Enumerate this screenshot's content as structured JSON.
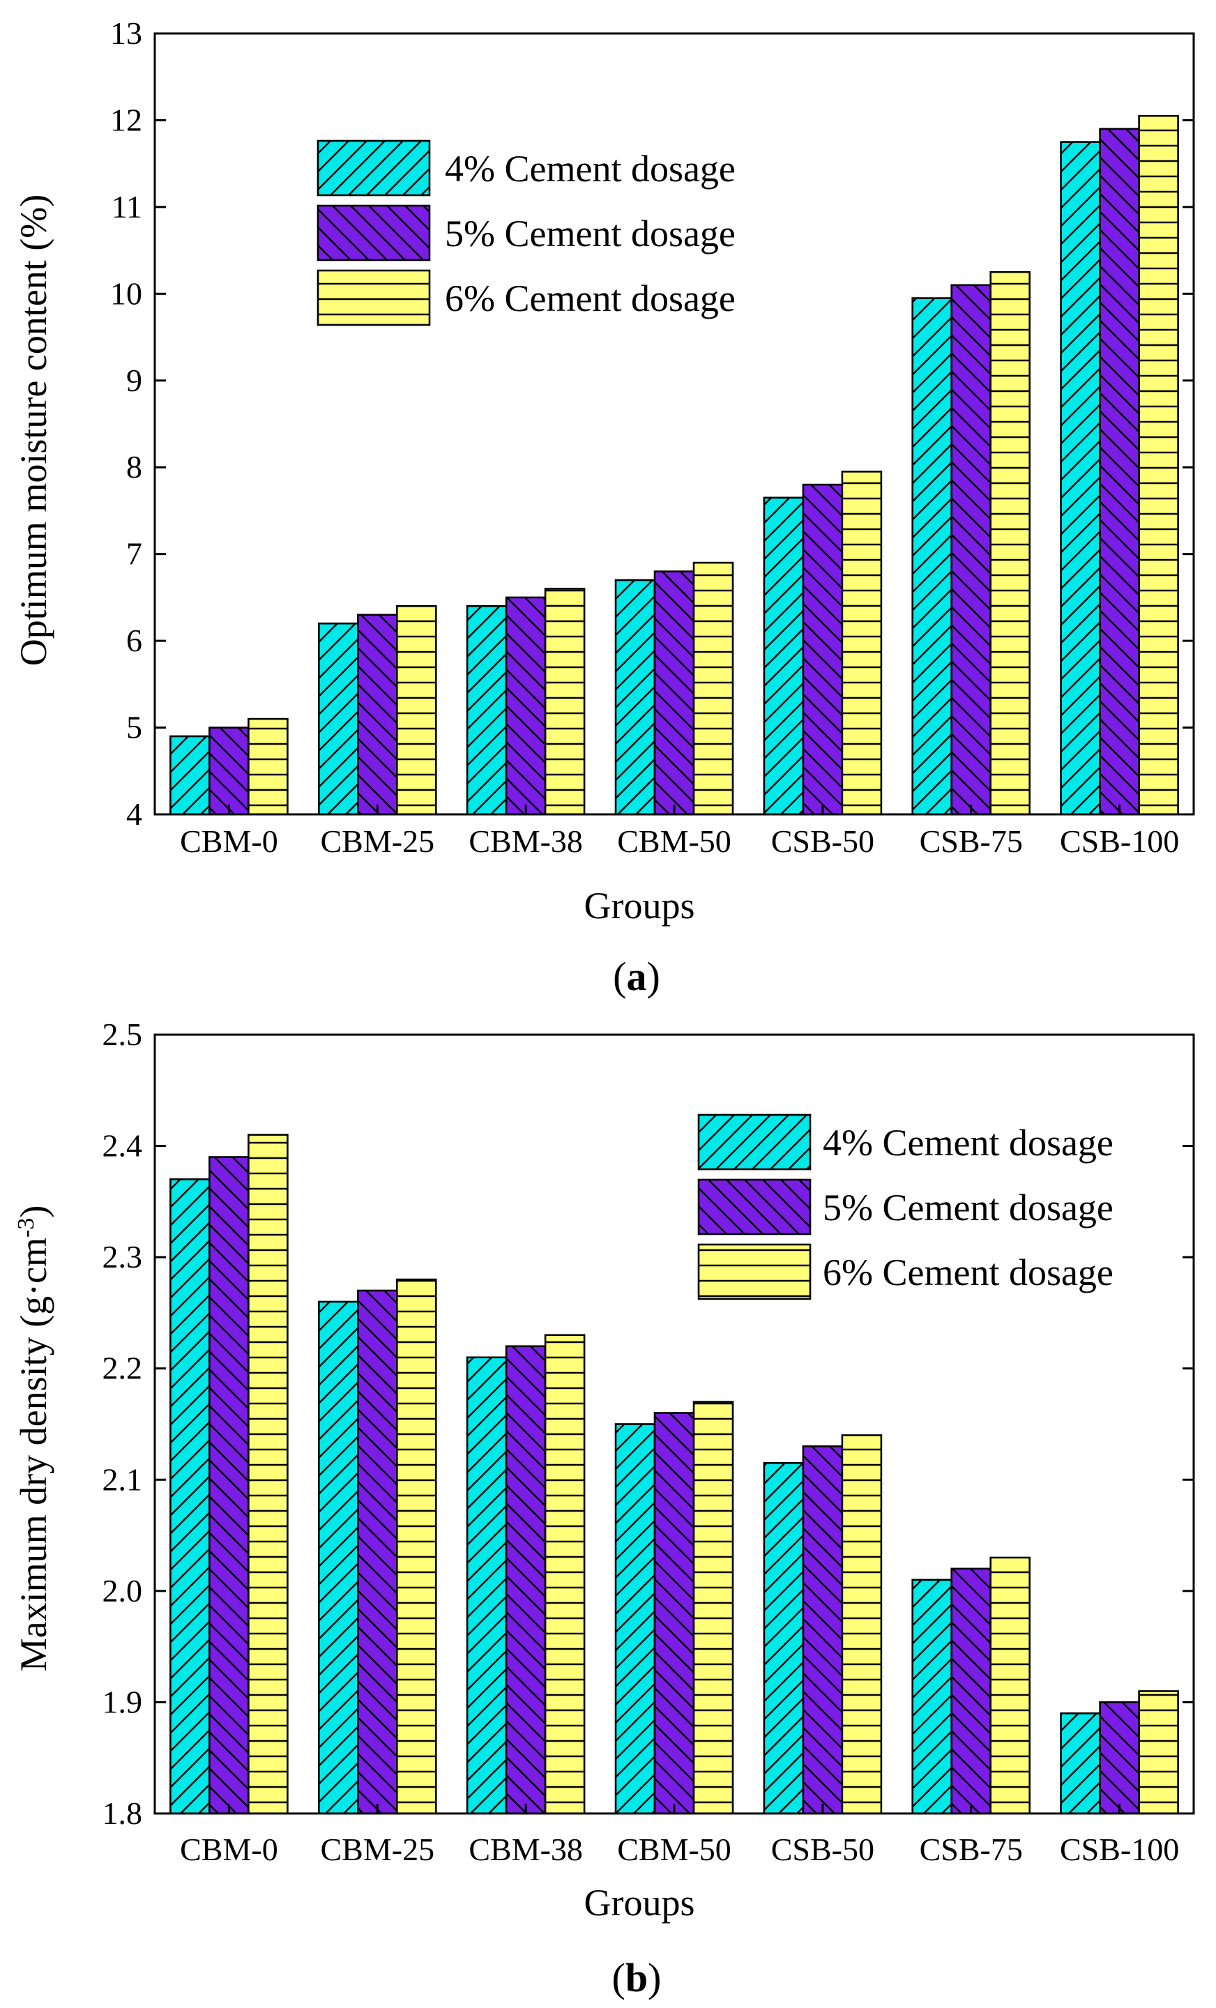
{
  "colors": {
    "series_4": "#00e8e8",
    "series_5": "#7a1ee6",
    "series_6": "#ffff7a",
    "hatch": "#000000"
  },
  "chart_data": [
    {
      "panel": "(a)",
      "panel_letter": "a",
      "type": "bar",
      "title": "",
      "xlabel": "Groups",
      "ylabel": "Optimum moisture content (%)",
      "categories": [
        "CBM-0",
        "CBM-25",
        "CBM-38",
        "CBM-50",
        "CSB-50",
        "CSB-75",
        "CSB-100"
      ],
      "ylim": [
        4,
        13
      ],
      "yticks": [
        "4",
        "5",
        "6",
        "7",
        "8",
        "9",
        "10",
        "11",
        "12",
        "13"
      ],
      "grid": false,
      "legend_position": "top-left",
      "series": [
        {
          "name": "4% Cement dosage",
          "color": "#00e8e8",
          "pattern": "forward-diagonal",
          "values": [
            4.9,
            6.2,
            6.4,
            6.7,
            7.65,
            9.95,
            11.75
          ]
        },
        {
          "name": "5% Cement dosage",
          "color": "#7a1ee6",
          "pattern": "backward-diagonal",
          "values": [
            5.0,
            6.3,
            6.5,
            6.8,
            7.8,
            10.1,
            11.9
          ]
        },
        {
          "name": "6% Cement dosage",
          "color": "#ffff7a",
          "pattern": "horizontal",
          "values": [
            5.1,
            6.4,
            6.6,
            6.9,
            7.95,
            10.25,
            12.05
          ]
        }
      ]
    },
    {
      "panel": "(b)",
      "panel_letter": "b",
      "type": "bar",
      "title": "",
      "xlabel": "Groups",
      "ylabel_main": "Maximum dry density (g·cm",
      "ylabel_exp": "-3",
      "ylabel_close": ")",
      "categories": [
        "CBM-0",
        "CBM-25",
        "CBM-38",
        "CBM-50",
        "CSB-50",
        "CSB-75",
        "CSB-100"
      ],
      "ylim": [
        1.8,
        2.5
      ],
      "yticks": [
        "1.8",
        "1.9",
        "2.0",
        "2.1",
        "2.2",
        "2.3",
        "2.4",
        "2.5"
      ],
      "grid": false,
      "legend_position": "top-right",
      "series": [
        {
          "name": "4% Cement dosage",
          "color": "#00e8e8",
          "pattern": "forward-diagonal",
          "values": [
            2.37,
            2.26,
            2.21,
            2.15,
            2.115,
            2.01,
            1.89
          ]
        },
        {
          "name": "5% Cement dosage",
          "color": "#7a1ee6",
          "pattern": "backward-diagonal",
          "values": [
            2.39,
            2.27,
            2.22,
            2.16,
            2.13,
            2.02,
            1.9
          ]
        },
        {
          "name": "6% Cement dosage",
          "color": "#ffff7a",
          "pattern": "horizontal",
          "values": [
            2.41,
            2.28,
            2.23,
            2.17,
            2.14,
            2.03,
            1.91
          ]
        }
      ]
    }
  ]
}
